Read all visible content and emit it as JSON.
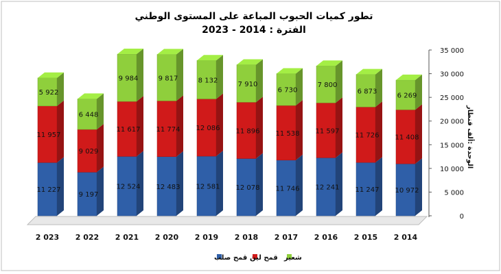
{
  "chart_data": {
    "type": "bar",
    "stacked": true,
    "title_line1": "تطور كميات الحبوب المباعة على المستوى الوطني",
    "title_line2": "الفترة : 2014 - 2023",
    "ylabel": "الوحدة :ألف قنطار",
    "ylim": [
      0,
      35000
    ],
    "yticks": [
      "0",
      "5 000",
      "10 000",
      "15 000",
      "20 000",
      "25 000",
      "30 000",
      "35 000"
    ],
    "categories": [
      "2 023",
      "2 022",
      "2 021",
      "2 020",
      "2 019",
      "2 018",
      "2 017",
      "2 016",
      "2 015",
      "2 014"
    ],
    "series": [
      {
        "name": "قمح صلب",
        "color": "#2f5fa8",
        "values": [
          11227,
          9197,
          12524,
          12483,
          12581,
          12078,
          11746,
          12241,
          11247,
          10972
        ],
        "labels": [
          "11 227",
          "9 197",
          "12 524",
          "12 483",
          "12 581",
          "12 078",
          "11 746",
          "12 241",
          "11 247",
          "10 972"
        ]
      },
      {
        "name": "قمح لين",
        "color": "#d01a1a",
        "values": [
          11957,
          9029,
          11617,
          11774,
          12086,
          11896,
          11538,
          11597,
          11726,
          11408
        ],
        "labels": [
          "11 957",
          "9 029",
          "11 617",
          "11 774",
          "12 086",
          "11 896",
          "11 538",
          "11 597",
          "11 726",
          "11 408"
        ]
      },
      {
        "name": "شعير",
        "color": "#8fcf3c",
        "values": [
          5922,
          6448,
          9984,
          9817,
          8132,
          7910,
          6730,
          7800,
          6873,
          6269
        ],
        "labels": [
          "5 922",
          "6 448",
          "9 984",
          "9 817",
          "8 132",
          "7 910",
          "6 730",
          "7 800",
          "6 873",
          "6 269"
        ]
      }
    ],
    "legend_position": "bottom",
    "grid": false
  }
}
